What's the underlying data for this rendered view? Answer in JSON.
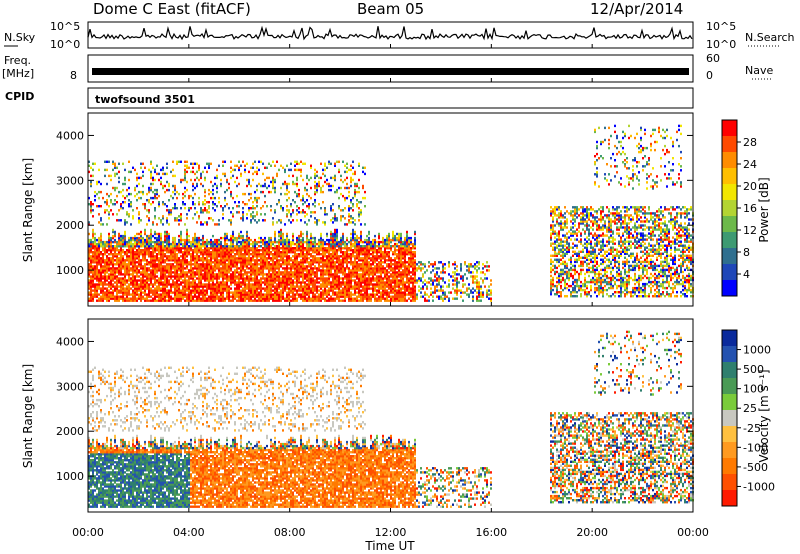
{
  "header": {
    "station": "Dome C East (fitACF)",
    "beam": "Beam 05",
    "date": "12/Apr/2014"
  },
  "top_panels": {
    "nsky_label": "N.Sky",
    "nsearch_label": "N.Search",
    "noise_ticks_left": [
      "10^5",
      "10^0"
    ],
    "noise_ticks_right": [
      "10^5",
      "10^0"
    ],
    "freq_label": "Freq.",
    "freq_unit": "[MHz]",
    "freq_tick_left": "8",
    "nave_label": "Nave",
    "nave_ticks_right": [
      "60",
      "0"
    ],
    "cpid_label": "CPID",
    "cpid_value": "twofsound 3501"
  },
  "chart_data": [
    {
      "type": "heatmap",
      "name": "power",
      "ylabel": "Slant Range [km]",
      "yticks": [
        1000,
        2000,
        3000,
        4000
      ],
      "ylim": [
        200,
        4500
      ],
      "xlim_hours": [
        0,
        24
      ],
      "colorbar_label": "Power [dB]",
      "colorbar_ticks": [
        "28",
        "24",
        "20",
        "16",
        "12",
        "8",
        "4"
      ],
      "colorbar_colors": [
        "#ff0000",
        "#ff4a00",
        "#ff8c00",
        "#ffbf00",
        "#f2e600",
        "#b3d433",
        "#6cb94a",
        "#3d9a72",
        "#2f6f8f",
        "#1f47b8",
        "#0000ff"
      ]
    },
    {
      "type": "heatmap",
      "name": "velocity",
      "ylabel": "Slant Range [km]",
      "yticks": [
        1000,
        2000,
        3000,
        4000
      ],
      "ylim": [
        200,
        4500
      ],
      "xlim_hours": [
        0,
        24
      ],
      "colorbar_label": "Velocity [m s⁻¹]",
      "colorbar_ticks": [
        "1000",
        "500",
        "100",
        "25",
        "-25",
        "-100",
        "-500",
        "-1000"
      ],
      "colorbar_colors": [
        "#0a2a9c",
        "#2452b0",
        "#2f7f6e",
        "#4a9a55",
        "#7acb3a",
        "#c8c8c0",
        "#ffc040",
        "#ff9a20",
        "#ff7a00",
        "#ff5000",
        "#ff1a00"
      ]
    }
  ],
  "xaxis": {
    "ticks": [
      "00:00",
      "04:00",
      "08:00",
      "12:00",
      "16:00",
      "20:00",
      "00:00"
    ],
    "label": "Time UT"
  }
}
